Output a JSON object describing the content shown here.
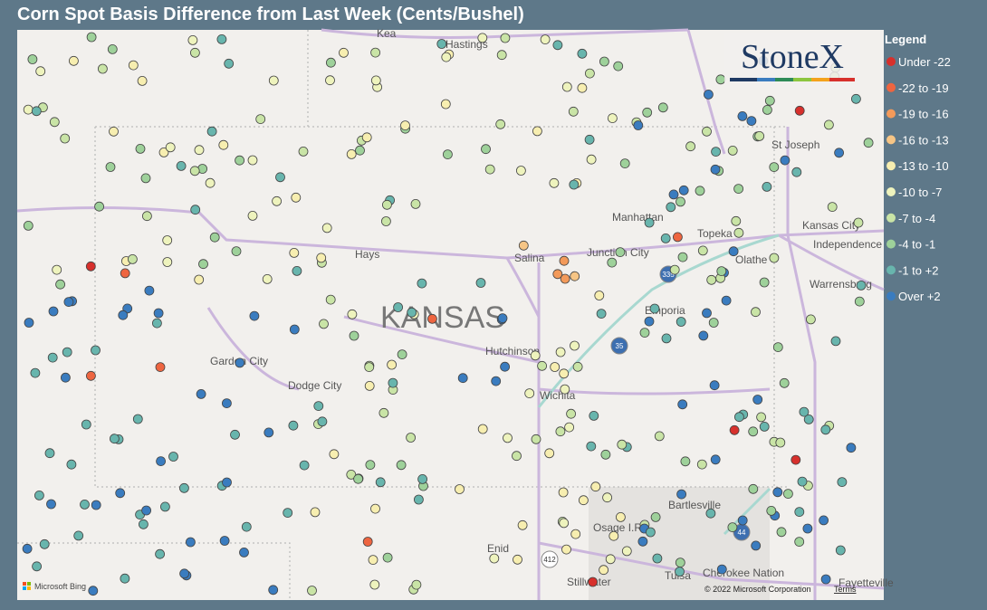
{
  "header": {
    "title": "Corn Spot Basis Difference from Last Week (Cents/Bushel)"
  },
  "legend": {
    "title": "Legend",
    "items": [
      {
        "label": "Under -22",
        "color": "#d7302c"
      },
      {
        "label": "-22 to -19",
        "color": "#ee6540"
      },
      {
        "label": "-19 to -16",
        "color": "#f39a5a"
      },
      {
        "label": "-16 to -13",
        "color": "#f6c585"
      },
      {
        "label": "-13 to -10",
        "color": "#f7eeb0"
      },
      {
        "label": "-10 to -7",
        "color": "#eef3bd"
      },
      {
        "label": "-7 to -4",
        "color": "#c9e4a6"
      },
      {
        "label": "-4 to -1",
        "color": "#9ed19a"
      },
      {
        "label": "-1 to +2",
        "color": "#68b5ad"
      },
      {
        "label": "Over +2",
        "color": "#3a7cbf"
      }
    ]
  },
  "map": {
    "state_label": "KANSAS",
    "logo": "StoneX",
    "cities": [
      "Kea",
      "Hastings",
      "St Joseph",
      "Manhattan",
      "Topeka",
      "Kansas City",
      "Independence",
      "Junction City",
      "Salina",
      "Hays",
      "Olathe",
      "Emporia",
      "Warrensburg",
      "Garden City",
      "Dodge City",
      "Hutchinson",
      "Wichita",
      "Bartlesville",
      "Osage I.R.",
      "Enid",
      "Stillwater",
      "Tulsa",
      "Cherokee Nation",
      "Fayetteville"
    ],
    "shields": [
      "335",
      "35",
      "44",
      "412"
    ],
    "attribution": {
      "brand": "Microsoft Bing",
      "copyright": "© 2022 Microsoft Corporation",
      "terms": "Terms"
    }
  }
}
